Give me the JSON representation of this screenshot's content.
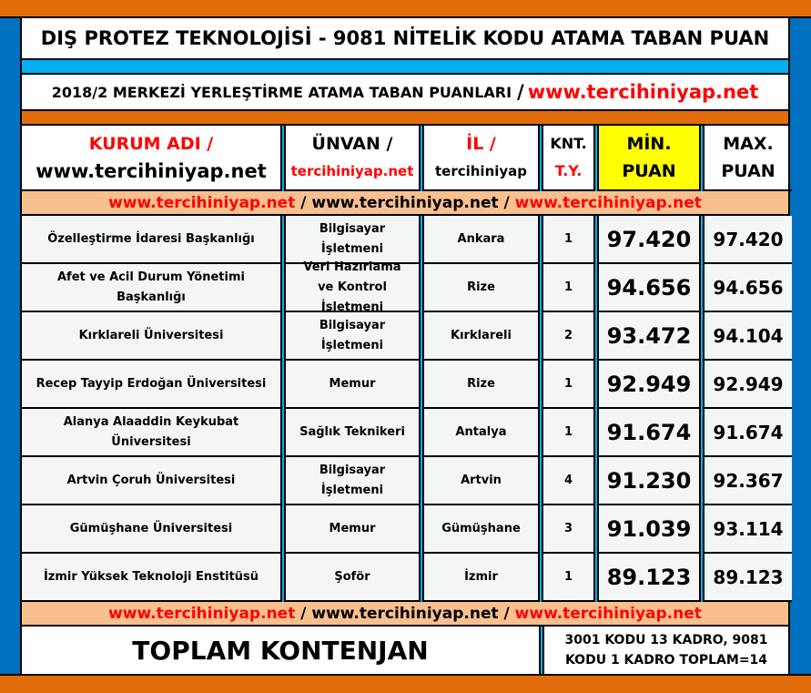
{
  "title": "DIŞ PROTEZ TEKNOLOJİSİ - 9081 NİTELİK KODU ATAMA TABAN PUAN",
  "subtitle": "2018/2 MERKEZİ YERLEŞTİRME ATAMA TABAN PUANLARI",
  "subtitle_sep": "/",
  "subtitle_url": "www.tercihiniyap.net",
  "headers": {
    "kurum": "KURUM ADI /",
    "kurum2": "www.tercihiniyap.net",
    "unvan": "ÜNVAN /",
    "unvan2": "tercihiniyap.net",
    "il": "İL /",
    "il2": "tercihiniyap",
    "knt": "KNT.",
    "knt2": "T.Y.",
    "min": "MİN.",
    "min2": "PUAN",
    "max": "MAX.",
    "max2": "PUAN"
  },
  "banner": {
    "a": "www.tercihiniyap.net",
    "s1": " / ",
    "b": "www.tercihiniyap.net",
    "s2": " / ",
    "c": "www.tercihiniyap.net"
  },
  "rows": [
    {
      "kurum": "Özelleştirme İdaresi Başkanlığı",
      "unvan": "Bilgisayar İşletmeni",
      "il": "Ankara",
      "knt": "1",
      "min": "97.420",
      "max": "97.420"
    },
    {
      "kurum": "Afet ve Acil Durum Yönetimi Başkanlığı",
      "unvan": "Veri Hazırlama ve Kontrol İşletmeni",
      "il": "Rize",
      "knt": "1",
      "min": "94.656",
      "max": "94.656"
    },
    {
      "kurum": "Kırklareli Üniversitesi",
      "unvan": "Bilgisayar İşletmeni",
      "il": "Kırklareli",
      "knt": "2",
      "min": "93.472",
      "max": "94.104"
    },
    {
      "kurum": "Recep Tayyip Erdoğan Üniversitesi",
      "unvan": "Memur",
      "il": "Rize",
      "knt": "1",
      "min": "92.949",
      "max": "92.949"
    },
    {
      "kurum": "Alanya Alaaddin Keykubat Üniversitesi",
      "unvan": "Sağlık Teknikeri",
      "il": "Antalya",
      "knt": "1",
      "min": "91.674",
      "max": "91.674"
    },
    {
      "kurum": "Artvin Çoruh Üniversitesi",
      "unvan": "Bilgisayar İşletmeni",
      "il": "Artvin",
      "knt": "4",
      "min": "91.230",
      "max": "92.367"
    },
    {
      "kurum": "Gümüşhane Üniversitesi",
      "unvan": "Memur",
      "il": "Gümüşhane",
      "knt": "3",
      "min": "91.039",
      "max": "93.114"
    },
    {
      "kurum": "İzmir Yüksek Teknoloji Enstitüsü",
      "unvan": "Şoför",
      "il": "İzmir",
      "knt": "1",
      "min": "89.123",
      "max": "89.123"
    }
  ],
  "total": {
    "label": "TOPLAM KONTENJAN",
    "note1": "3001 KODU 13 KADRO, 9081",
    "note2": "KODU 1 KADRO TOPLAM=14"
  },
  "colors": {
    "orange": "#e36c0a",
    "blue": "#0070c0",
    "cyan": "#00b0f0",
    "peach": "#f8bf8f",
    "yellow": "#ffff00",
    "red": "#ff0000"
  }
}
